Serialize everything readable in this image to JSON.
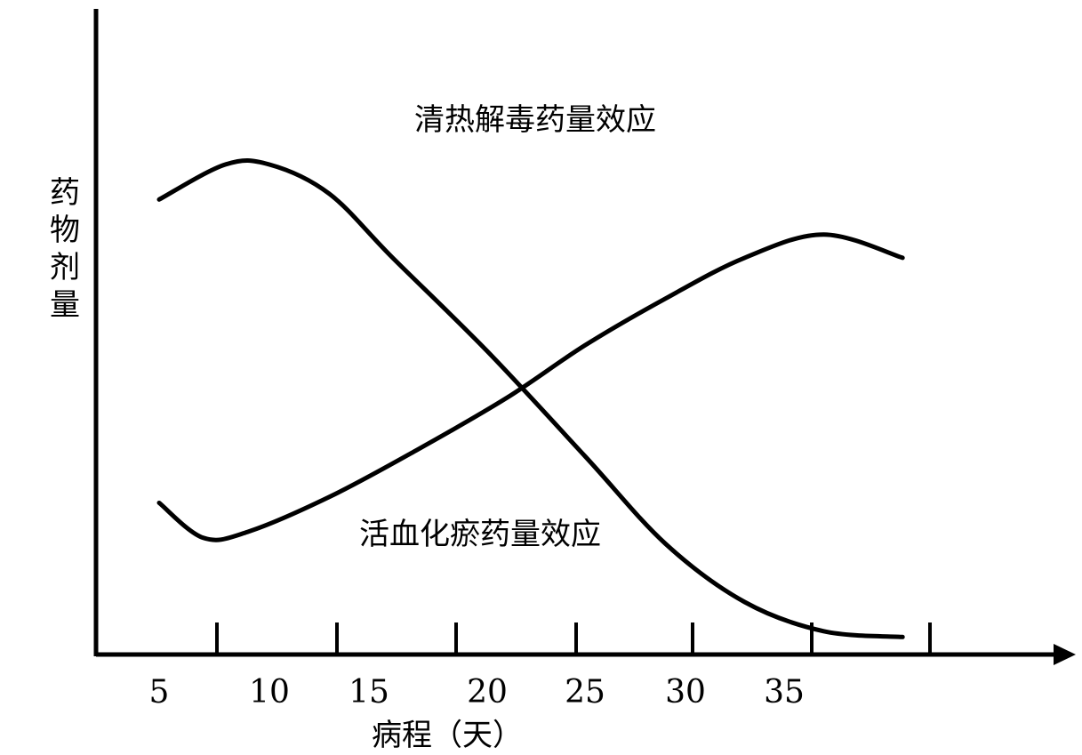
{
  "chart_data": {
    "type": "line",
    "title": "",
    "xlabel": "病程（天）",
    "ylabel": "药物剂量",
    "x_tick_labels": [
      "5",
      "10",
      "15",
      "20",
      "25",
      "30",
      "35"
    ],
    "y_tick_labels": [],
    "grid": false,
    "series": [
      {
        "name": "清热解毒药量效应",
        "trend": "rises slightly, peaks early, then falls steeply to a low level",
        "x": [
          5,
          8,
          10,
          13,
          16,
          20,
          25,
          29,
          33,
          37,
          41
        ],
        "y": [
          0.78,
          0.84,
          0.84,
          0.79,
          0.68,
          0.52,
          0.34,
          0.19,
          0.09,
          0.04,
          0.03
        ]
      },
      {
        "name": "活血化瘀药量效应",
        "trend": "dips slightly at start, then rises steadily to a plateau",
        "x": [
          5,
          7,
          9,
          13,
          17,
          21,
          25,
          29,
          33,
          37,
          41
        ],
        "y": [
          0.26,
          0.2,
          0.21,
          0.27,
          0.35,
          0.44,
          0.53,
          0.61,
          0.68,
          0.72,
          0.68
        ]
      }
    ]
  }
}
